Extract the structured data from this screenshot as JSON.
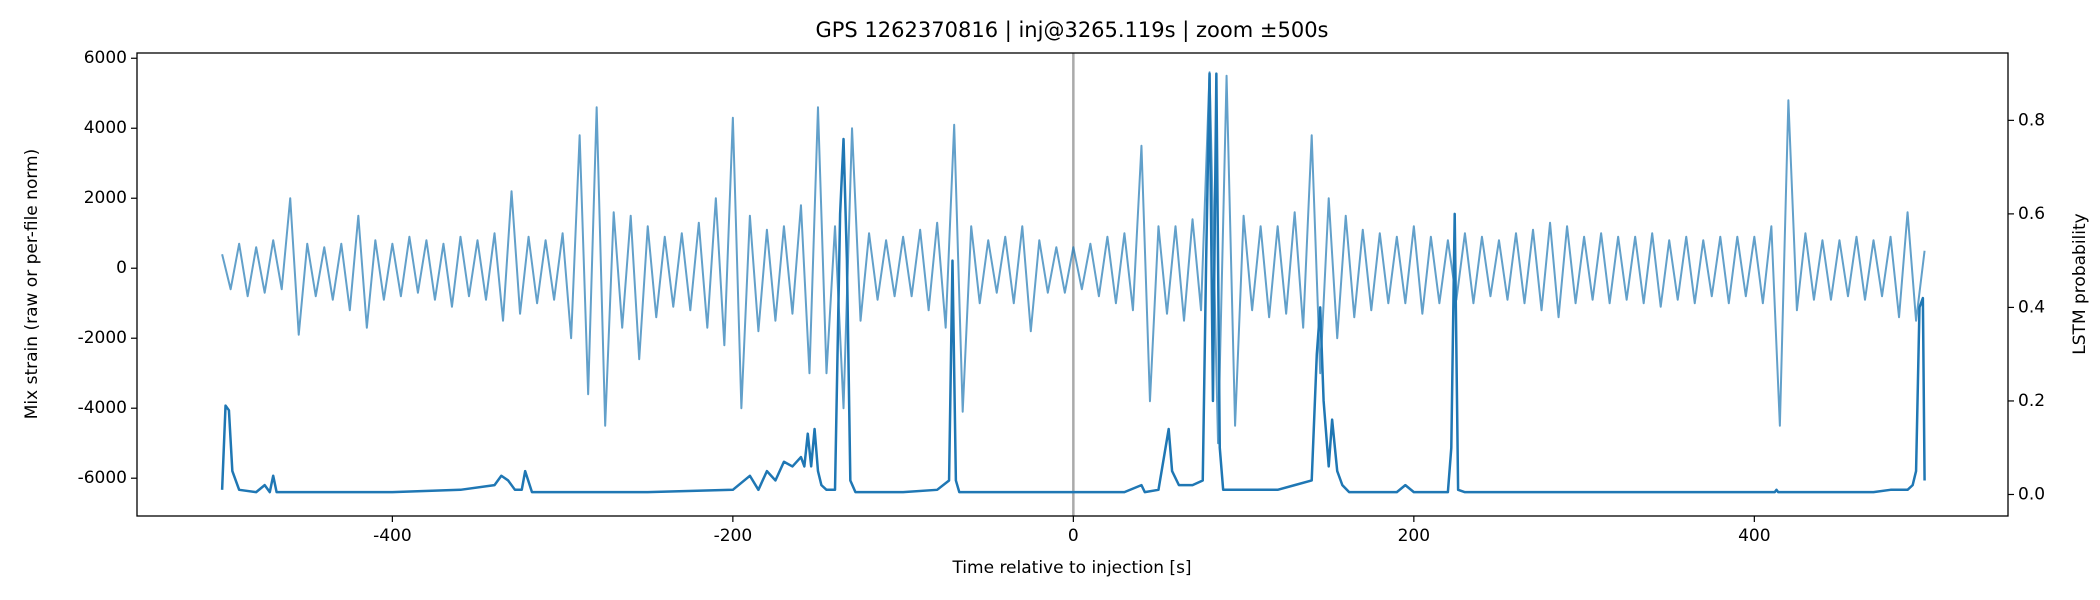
{
  "chart_data": {
    "type": "line",
    "title": "GPS 1262370816 | inj@3265.119s | zoom ±500s",
    "xlabel": "Time relative to injection [s]",
    "ylabel": "Mix strain (raw or per-file norm)",
    "y2label": "LSTM probability",
    "xlim": [
      -550,
      549
    ],
    "xticks": [
      -400,
      -200,
      0,
      200,
      400
    ],
    "ylim": [
      -7080,
      6150
    ],
    "yticks": [
      -6000,
      -4000,
      -2000,
      0,
      2000,
      4000,
      6000
    ],
    "y2lim": [
      -0.046,
      0.944
    ],
    "y2ticks": [
      {
        "value": 0,
        "label": "0.0"
      },
      0.2,
      0.4,
      0.6,
      0.8
    ],
    "vline": 0,
    "vline_color": "#aaaaaa",
    "series": [
      {
        "color": "#1f77b4",
        "opacity": 0.7,
        "axis": "y",
        "x": [
          -500,
          -495,
          -490,
          -485,
          -480,
          -475,
          -470,
          -465,
          -460,
          -455,
          -450,
          -445,
          -440,
          -435,
          -430,
          -425,
          -420,
          -415,
          -410,
          -405,
          -400,
          -395,
          -390,
          -385,
          -380,
          -375,
          -370,
          -365,
          -360,
          -355,
          -350,
          -345,
          -340,
          -335,
          -330,
          -325,
          -320,
          -315,
          -310,
          -305,
          -300,
          -295,
          -290,
          -285,
          -280,
          -275,
          -270,
          -265,
          -260,
          -255,
          -250,
          -245,
          -240,
          -235,
          -230,
          -225,
          -220,
          -215,
          -210,
          -205,
          -200,
          -195,
          -190,
          -185,
          -180,
          -175,
          -170,
          -165,
          -160,
          -155,
          -150,
          -145,
          -140,
          -135,
          -130,
          -125,
          -120,
          -115,
          -110,
          -105,
          -100,
          -95,
          -90,
          -85,
          -80,
          -75,
          -70,
          -65,
          -60,
          -55,
          -50,
          -45,
          -40,
          -35,
          -30,
          -25,
          -20,
          -15,
          -10,
          -5,
          0,
          5,
          10,
          15,
          20,
          25,
          30,
          35,
          40,
          45,
          50,
          55,
          60,
          65,
          70,
          75,
          80,
          85,
          90,
          95,
          100,
          105,
          110,
          115,
          120,
          125,
          130,
          135,
          140,
          145,
          150,
          155,
          160,
          165,
          170,
          175,
          180,
          185,
          190,
          195,
          200,
          205,
          210,
          215,
          220,
          225,
          230,
          235,
          240,
          245,
          250,
          255,
          260,
          265,
          270,
          275,
          280,
          285,
          290,
          295,
          300,
          305,
          310,
          315,
          320,
          325,
          330,
          335,
          340,
          345,
          350,
          355,
          360,
          365,
          370,
          375,
          380,
          385,
          390,
          395,
          400,
          405,
          410,
          415,
          420,
          425,
          430,
          435,
          440,
          445,
          450,
          455,
          460,
          465,
          470,
          475,
          480,
          485,
          490,
          495,
          500
        ],
        "values": [
          400,
          -600,
          700,
          -800,
          600,
          -700,
          800,
          -600,
          2000,
          -1900,
          700,
          -800,
          600,
          -900,
          700,
          -1200,
          1500,
          -1700,
          800,
          -900,
          700,
          -800,
          900,
          -700,
          800,
          -900,
          700,
          -1100,
          900,
          -800,
          800,
          -900,
          1000,
          -1500,
          2200,
          -1300,
          900,
          -1000,
          800,
          -900,
          1000,
          -2000,
          3800,
          -3600,
          4600,
          -4500,
          1600,
          -1700,
          1500,
          -2600,
          1200,
          -1400,
          900,
          -1100,
          1000,
          -1200,
          1300,
          -1700,
          2000,
          -2200,
          4300,
          -4000,
          1500,
          -1800,
          1100,
          -1500,
          1200,
          -1300,
          1800,
          -3000,
          4600,
          -3000,
          1200,
          -4000,
          4000,
          -1500,
          1000,
          -900,
          800,
          -800,
          900,
          -800,
          1100,
          -1200,
          1300,
          -1700,
          4100,
          -4100,
          1200,
          -1000,
          800,
          -700,
          900,
          -1000,
          1200,
          -1800,
          800,
          -700,
          600,
          -700,
          600,
          -600,
          700,
          -800,
          900,
          -1000,
          1000,
          -1200,
          3500,
          -3800,
          1200,
          -1300,
          1200,
          -1500,
          1400,
          -1200,
          5600,
          -5000,
          5500,
          -4500,
          1500,
          -1200,
          1200,
          -1400,
          1200,
          -1300,
          1600,
          -1700,
          3800,
          -3000,
          2000,
          -2000,
          1500,
          -1400,
          1100,
          -1200,
          1000,
          -1000,
          900,
          -1000,
          1200,
          -1300,
          900,
          -1000,
          800,
          -900,
          1000,
          -1000,
          900,
          -800,
          800,
          -900,
          1000,
          -1000,
          1100,
          -1200,
          1300,
          -1400,
          1200,
          -1000,
          900,
          -900,
          1000,
          -1000,
          900,
          -900,
          900,
          -1000,
          1000,
          -1100,
          800,
          -900,
          900,
          -1000,
          800,
          -800,
          900,
          -1000,
          900,
          -800,
          900,
          -1000,
          1200,
          -4500,
          4800,
          -1200,
          1000,
          -900,
          800,
          -900,
          800,
          -800,
          900,
          -900,
          800,
          -800,
          900,
          -1400,
          1600,
          -1500,
          500
        ]
      },
      {
        "color": "#1f77b4",
        "opacity": 1,
        "axis": "y2",
        "x": [
          -500,
          -498,
          -496,
          -494,
          -490,
          -480,
          -475,
          -472,
          -470,
          -468,
          -450,
          -400,
          -360,
          -340,
          -336,
          -332,
          -328,
          -324,
          -322,
          -318,
          -300,
          -250,
          -200,
          -190,
          -185,
          -180,
          -175,
          -170,
          -165,
          -160,
          -158,
          -156,
          -154,
          -152,
          -150,
          -148,
          -145,
          -140,
          -137,
          -135,
          -133,
          -131,
          -128,
          -120,
          -100,
          -80,
          -73,
          -71,
          -69,
          -67,
          -60,
          -20,
          0,
          30,
          40,
          42,
          50,
          56,
          58,
          62,
          70,
          76,
          78,
          80,
          82,
          84,
          86,
          88,
          100,
          120,
          130,
          140,
          143,
          145,
          147,
          150,
          152,
          155,
          158,
          162,
          170,
          190,
          195,
          200,
          220,
          222,
          224,
          226,
          230,
          300,
          400,
          412,
          413,
          414,
          415,
          420,
          470,
          480,
          490,
          493,
          495,
          497,
          499,
          500
        ],
        "values": [
          0.01,
          0.19,
          0.18,
          0.05,
          0.01,
          0.005,
          0.02,
          0.005,
          0.04,
          0.005,
          0.005,
          0.005,
          0.01,
          0.02,
          0.04,
          0.03,
          0.01,
          0.01,
          0.05,
          0.005,
          0.005,
          0.005,
          0.01,
          0.04,
          0.01,
          0.05,
          0.03,
          0.07,
          0.06,
          0.08,
          0.06,
          0.13,
          0.06,
          0.14,
          0.05,
          0.02,
          0.01,
          0.01,
          0.6,
          0.76,
          0.5,
          0.03,
          0.005,
          0.005,
          0.005,
          0.01,
          0.03,
          0.5,
          0.03,
          0.005,
          0.005,
          0.005,
          0.005,
          0.005,
          0.02,
          0.005,
          0.01,
          0.14,
          0.05,
          0.02,
          0.02,
          0.03,
          0.5,
          0.9,
          0.2,
          0.9,
          0.1,
          0.01,
          0.01,
          0.01,
          0.02,
          0.03,
          0.3,
          0.4,
          0.2,
          0.06,
          0.16,
          0.05,
          0.02,
          0.005,
          0.005,
          0.005,
          0.02,
          0.005,
          0.005,
          0.1,
          0.6,
          0.01,
          0.005,
          0.005,
          0.005,
          0.005,
          0.01,
          0.005,
          0.005,
          0.005,
          0.005,
          0.01,
          0.01,
          0.02,
          0.05,
          0.4,
          0.42,
          0.03
        ]
      }
    ]
  }
}
